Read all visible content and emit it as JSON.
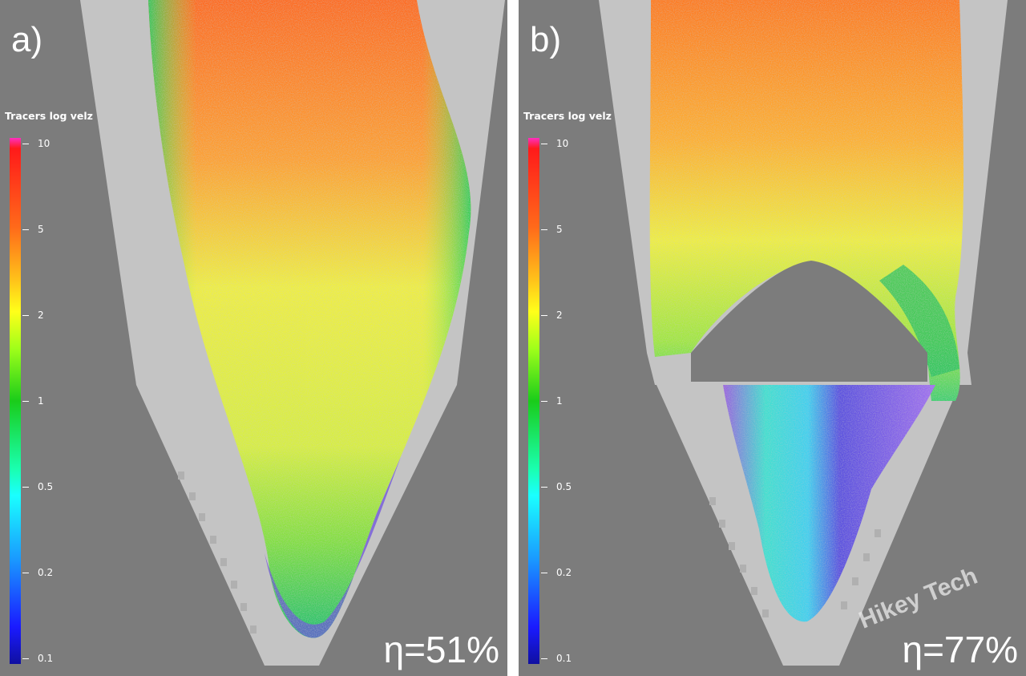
{
  "panels": [
    {
      "label": "a)",
      "colorbar_title": "Tracers log velz",
      "colorbar_ticks": [
        "10",
        "5",
        "2",
        "1",
        "0.5",
        "0.2",
        "0.1"
      ],
      "efficiency_text": "η=51%"
    },
    {
      "label": "b)",
      "colorbar_title": "Tracers log velz",
      "colorbar_ticks": [
        "10",
        "5",
        "2",
        "1",
        "0.5",
        "0.2",
        "0.1"
      ],
      "efficiency_text": "η=77%"
    }
  ],
  "watermark": "Hikey Tech",
  "colors": {
    "background": "#7c7c7c",
    "vessel_interior": "#c4c4c4",
    "divider": "#ffffff"
  }
}
